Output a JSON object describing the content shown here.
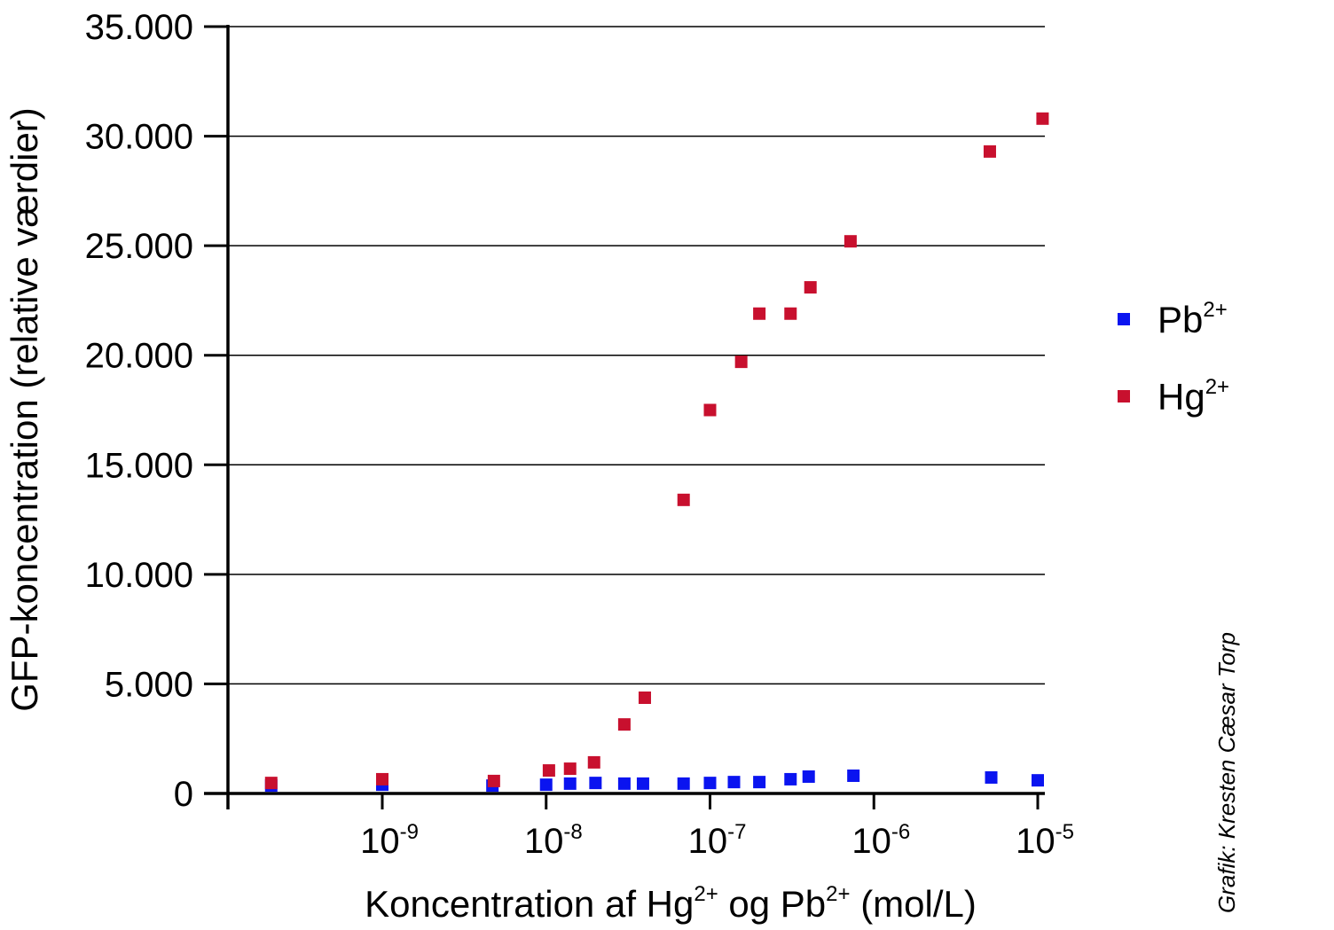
{
  "chart_data": {
    "type": "scatter",
    "xscale": "log",
    "xlim": [
      1.2e-10,
      1.2e-05
    ],
    "ylim": [
      0,
      35000
    ],
    "grid": "horizontal",
    "legend": "right",
    "ylabel": "GFP-koncentration (relative værdier)",
    "xlabel_parts": [
      "Koncentration af Hg",
      "2+",
      " og Pb",
      "2+",
      " (mol/L)"
    ],
    "yticks": [
      {
        "value": 0,
        "label": "0"
      },
      {
        "value": 5000,
        "label": "5.000"
      },
      {
        "value": 10000,
        "label": "10.000"
      },
      {
        "value": 15000,
        "label": "15.000"
      },
      {
        "value": 20000,
        "label": "20.000"
      },
      {
        "value": 25000,
        "label": "25.000"
      },
      {
        "value": 30000,
        "label": "30.000"
      },
      {
        "value": 35000,
        "label": "35.000"
      }
    ],
    "xticks": [
      {
        "value": 1e-09,
        "base": "10",
        "exp": "-9"
      },
      {
        "value": 1e-08,
        "base": "10",
        "exp": "-8"
      },
      {
        "value": 1e-07,
        "base": "10",
        "exp": "-7"
      },
      {
        "value": 1e-06,
        "base": "10",
        "exp": "-6"
      },
      {
        "value": 1e-05,
        "base": "10",
        "exp": "-5"
      }
    ],
    "series": [
      {
        "name": "Pb",
        "name_sup": "2+",
        "color": "#0a14f0",
        "points": [
          [
            2.1e-10,
            360
          ],
          [
            1e-09,
            400
          ],
          [
            4.7e-09,
            360
          ],
          [
            1e-08,
            400
          ],
          [
            1.4e-08,
            450
          ],
          [
            2e-08,
            480
          ],
          [
            3e-08,
            450
          ],
          [
            3.9e-08,
            450
          ],
          [
            6.9e-08,
            450
          ],
          [
            1e-07,
            480
          ],
          [
            1.4e-07,
            520
          ],
          [
            2e-07,
            520
          ],
          [
            3.1e-07,
            650
          ],
          [
            4e-07,
            770
          ],
          [
            7.5e-07,
            810
          ],
          [
            5.2e-06,
            730
          ],
          [
            1e-05,
            600
          ]
        ]
      },
      {
        "name": "Hg",
        "name_sup": "2+",
        "color": "#c8102e",
        "points": [
          [
            2.1e-10,
            480
          ],
          [
            1e-09,
            650
          ],
          [
            4.8e-09,
            570
          ],
          [
            1.04e-08,
            1050
          ],
          [
            1.4e-08,
            1130
          ],
          [
            1.96e-08,
            1420
          ],
          [
            3e-08,
            3150
          ],
          [
            4e-08,
            4370
          ],
          [
            6.9e-08,
            13400
          ],
          [
            1e-07,
            17500
          ],
          [
            1.55e-07,
            19700
          ],
          [
            2e-07,
            21900
          ],
          [
            3.1e-07,
            21900
          ],
          [
            4.1e-07,
            23100
          ],
          [
            7.2e-07,
            25200
          ],
          [
            5.1e-06,
            29300
          ],
          [
            1.07e-05,
            30800
          ]
        ]
      }
    ]
  },
  "credit": "Grafik: Kresten Cæsar Torp"
}
